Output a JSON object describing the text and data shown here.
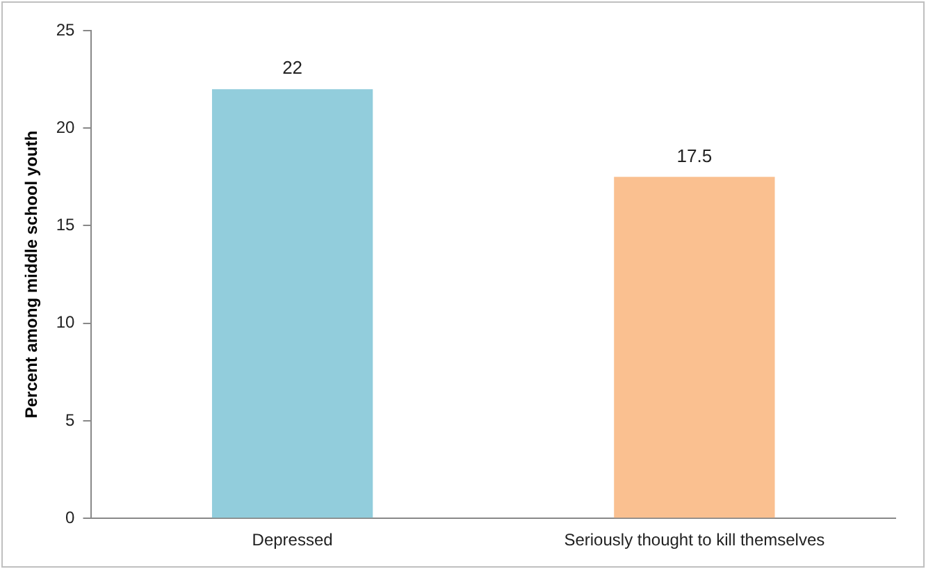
{
  "chart_data": {
    "type": "bar",
    "ylabel": "Percent among middle school youth",
    "categories": [
      "Depressed",
      "Seriously thought to kill themselves"
    ],
    "values": [
      22,
      17.5
    ],
    "colors": [
      "#92cddc",
      "#fac090"
    ],
    "ylim": [
      0,
      25
    ],
    "yticks": [
      0,
      5,
      10,
      15,
      20,
      25
    ],
    "grid": false,
    "legend": false,
    "data_labels": true
  }
}
